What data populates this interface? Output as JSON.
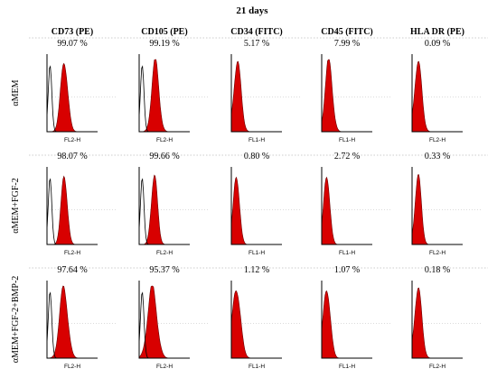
{
  "title": "21 days",
  "colors": {
    "test": "#d80000",
    "test_edge": "#6a0000",
    "control": "#000000",
    "frame": "#000000"
  },
  "columns": [
    {
      "label": "CD73 (PE)",
      "axis": "FL2-H"
    },
    {
      "label": "CD105 (PE)",
      "axis": "FL2-H"
    },
    {
      "label": "CD34 (FITC)",
      "axis": "FL1-H"
    },
    {
      "label": "CD45 (FITC)",
      "axis": "FL1-H"
    },
    {
      "label": "HLA DR (PE)",
      "axis": "FL2-H"
    }
  ],
  "rows": [
    {
      "label": "αMEM",
      "percentages": [
        "99.07 %",
        "99.19 %",
        "5.17 %",
        "7.99 %",
        "0.09 %"
      ]
    },
    {
      "label": "αMEM+FGF-2",
      "percentages": [
        "98.07 %",
        "99.66 %",
        "0.80 %",
        "2.72 %",
        "0.33 %"
      ]
    },
    {
      "label": "αMEM+FGF-2+BMP-2",
      "percentages": [
        "97.64 %",
        "95.37 %",
        "1.12 %",
        "1.07 %",
        "0.18 %"
      ]
    }
  ],
  "chart_data": {
    "type": "area",
    "description_scale": "log fluorescence intensity (relative, 0-1 of axis), normalized event count",
    "panels": [
      {
        "row": 0,
        "col": 0,
        "control_peak": 0.06,
        "test_peak": 0.34,
        "test_width": 0.07
      },
      {
        "row": 0,
        "col": 1,
        "control_peak": 0.06,
        "test_peak": 0.32,
        "test_width": 0.07
      },
      {
        "row": 0,
        "col": 2,
        "control_peak": null,
        "test_peak": 0.12,
        "test_width": 0.07
      },
      {
        "row": 0,
        "col": 3,
        "control_peak": null,
        "test_peak": 0.14,
        "test_width": 0.07
      },
      {
        "row": 0,
        "col": 4,
        "control_peak": null,
        "test_peak": 0.12,
        "test_width": 0.07
      },
      {
        "row": 1,
        "col": 0,
        "control_peak": 0.06,
        "test_peak": 0.34,
        "test_width": 0.06
      },
      {
        "row": 1,
        "col": 1,
        "control_peak": 0.06,
        "test_peak": 0.3,
        "test_width": 0.06
      },
      {
        "row": 1,
        "col": 2,
        "control_peak": null,
        "test_peak": 0.1,
        "test_width": 0.06
      },
      {
        "row": 1,
        "col": 3,
        "control_peak": null,
        "test_peak": 0.1,
        "test_width": 0.06
      },
      {
        "row": 1,
        "col": 4,
        "control_peak": null,
        "test_peak": 0.12,
        "test_width": 0.06
      },
      {
        "row": 2,
        "col": 0,
        "control_peak": 0.06,
        "test_peak": 0.33,
        "test_width": 0.08
      },
      {
        "row": 2,
        "col": 1,
        "control_peak": 0.06,
        "test_peak": 0.26,
        "test_width": 0.09
      },
      {
        "row": 2,
        "col": 2,
        "control_peak": null,
        "test_peak": 0.1,
        "test_width": 0.08
      },
      {
        "row": 2,
        "col": 3,
        "control_peak": null,
        "test_peak": 0.1,
        "test_width": 0.07
      },
      {
        "row": 2,
        "col": 4,
        "control_peak": null,
        "test_peak": 0.12,
        "test_width": 0.07
      }
    ]
  }
}
